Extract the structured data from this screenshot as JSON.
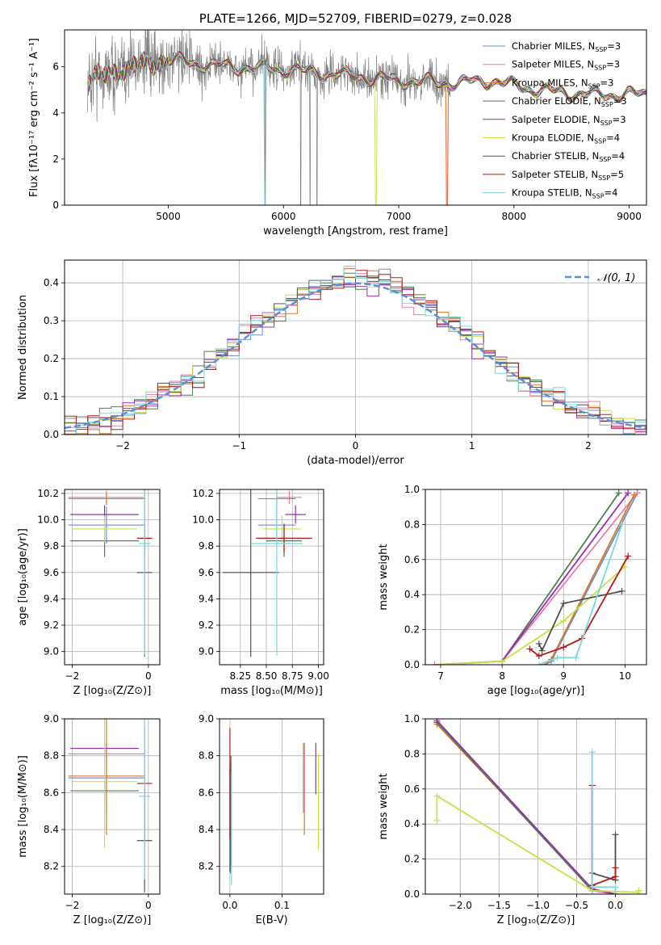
{
  "figure_title": "PLATE=1266, MJD=52709, FIBERID=0279, z=0.028",
  "colors": {
    "Chabrier MILES": "#6b8fd6",
    "Salpeter MILES": "#e67fb0",
    "Kroupa MILES": "#d97a2b",
    "Chabrier ELODIE": "#4f7f4f",
    "Salpeter ELODIE": "#9b2fb0",
    "Kroupa ELODIE": "#c8e04a",
    "Chabrier STELIB": "#505050",
    "Salpeter STELIB": "#b01c1c",
    "Kroupa STELIB": "#7ad8dc",
    "data": "#808080",
    "normal": "#5b8cd9",
    "grid": "#b0b0b0"
  },
  "chart_data": [
    {
      "id": "spectrum",
      "type": "line",
      "title": "PLATE=1266, MJD=52709, FIBERID=0279, z=0.028",
      "xlabel": "wavelength [Angstrom, rest frame]",
      "ylabel": "Flux [fλ10⁻¹⁷ erg cm⁻² s⁻¹ A⁻¹]",
      "xlim": [
        4100,
        9150
      ],
      "ylim": [
        0,
        7.6
      ],
      "xticks": [
        5000,
        6000,
        7000,
        8000,
        9000
      ],
      "yticks": [
        0,
        2,
        4,
        6
      ],
      "grid": false,
      "legend_position": "top-right",
      "legend": [
        {
          "label": "Chabrier MILES, N",
          "sub": "SSP",
          "tail": "=3",
          "model": "Chabrier MILES"
        },
        {
          "label": "Salpeter MILES, N",
          "sub": "SSP",
          "tail": "=3",
          "model": "Salpeter MILES"
        },
        {
          "label": "Kroupa MILES, N",
          "sub": "SSP",
          "tail": "=3",
          "model": "Kroupa MILES"
        },
        {
          "label": "Chabrier ELODIE, N",
          "sub": "SSP",
          "tail": "=3",
          "model": "Chabrier ELODIE"
        },
        {
          "label": "Salpeter ELODIE, N",
          "sub": "SSP",
          "tail": "=3",
          "model": "Salpeter ELODIE"
        },
        {
          "label": "Kroupa ELODIE, N",
          "sub": "SSP",
          "tail": "=4",
          "model": "Kroupa ELODIE"
        },
        {
          "label": "Chabrier STELIB, N",
          "sub": "SSP",
          "tail": "=4",
          "model": "Chabrier STELIB"
        },
        {
          "label": "Salpeter STELIB, N",
          "sub": "SSP",
          "tail": "=5",
          "model": "Salpeter STELIB"
        },
        {
          "label": "Kroupa STELIB, N",
          "sub": "SSP",
          "tail": "=4",
          "model": "Kroupa STELIB"
        }
      ],
      "continuum": [
        [
          4300,
          5.3
        ],
        [
          4500,
          5.8
        ],
        [
          4800,
          6.1
        ],
        [
          5000,
          6.3
        ],
        [
          5500,
          6.0
        ],
        [
          6000,
          5.9
        ],
        [
          6500,
          5.65
        ],
        [
          7000,
          5.4
        ],
        [
          7500,
          5.3
        ],
        [
          7800,
          5.4
        ],
        [
          8200,
          5.0
        ],
        [
          8600,
          4.8
        ],
        [
          9000,
          4.8
        ],
        [
          9150,
          4.8
        ]
      ],
      "model_cutoffs": {
        "Kroupa MILES": 7420,
        "Kroupa ELODIE": 6800,
        "Kroupa STELIB": 5840,
        "Salpeter MILES": 7420
      },
      "data_dropouts": [
        6150,
        6230,
        6290,
        5840
      ],
      "data_noisy_until": 7450
    },
    {
      "id": "residuals",
      "type": "histogram",
      "xlabel": "(data-model)/error",
      "ylabel": "Normed distribution",
      "xlim": [
        -2.5,
        2.5
      ],
      "ylim": [
        0,
        0.46
      ],
      "xticks": [
        -2,
        -1,
        0,
        1,
        2
      ],
      "yticks": [
        0.0,
        0.1,
        0.2,
        0.3,
        0.4
      ],
      "grid": true,
      "bin_width": 0.1,
      "legend_position": "top-right",
      "normal_label": "𝒩(0, 1)",
      "series_models": [
        "Chabrier MILES",
        "Salpeter MILES",
        "Kroupa MILES",
        "Chabrier ELODIE",
        "Salpeter ELODIE",
        "Kroupa ELODIE",
        "Chabrier STELIB",
        "Salpeter STELIB",
        "Kroupa STELIB"
      ]
    },
    {
      "id": "age_vs_z",
      "type": "scatter",
      "xlabel": "Z [log₁₀(Z/Z⊙)]",
      "ylabel": "age  [log₁₀(age/yr)]",
      "xlim": [
        -2.2,
        0.3
      ],
      "ylim": [
        8.9,
        10.23
      ],
      "xticks": [
        -2,
        0
      ],
      "yticks": [
        9.0,
        9.2,
        9.4,
        9.6,
        9.8,
        10.0,
        10.2
      ],
      "grid": true,
      "points": [
        {
          "model": "Chabrier MILES",
          "x": -1.1,
          "xerr": 1.0,
          "y": 9.96,
          "yerr": 0.14
        },
        {
          "model": "Salpeter MILES",
          "x": -1.1,
          "xerr": 1.0,
          "y": 10.17,
          "yerr": 0.05
        },
        {
          "model": "Kroupa MILES",
          "x": -1.1,
          "xerr": 1.0,
          "y": 10.16,
          "yerr": 0.05
        },
        {
          "model": "Chabrier ELODIE",
          "x": -1.15,
          "xerr": 0.9,
          "y": 9.84,
          "yerr": 0.12
        },
        {
          "model": "Salpeter ELODIE",
          "x": -1.15,
          "xerr": 0.9,
          "y": 10.04,
          "yerr": 0.07
        },
        {
          "model": "Kroupa ELODIE",
          "x": -1.15,
          "xerr": 0.85,
          "y": 9.93,
          "yerr": 0.1
        },
        {
          "model": "Chabrier STELIB",
          "x": -0.1,
          "xerr": 0.2,
          "y": 9.6,
          "yerr": 0.64
        },
        {
          "model": "Salpeter STELIB",
          "x": -0.1,
          "xerr": 0.2,
          "y": 9.86,
          "yerr": 0.11
        },
        {
          "model": "Kroupa STELIB",
          "x": -0.1,
          "xerr": 0.15,
          "y": 9.82,
          "yerr": 0.85
        }
      ]
    },
    {
      "id": "age_vs_mass",
      "type": "scatter",
      "xlabel": "mass [log₁₀(M/M⊙)]",
      "ylabel": "",
      "xlim": [
        8.05,
        9.05
      ],
      "ylim": [
        8.9,
        10.23
      ],
      "xticks": [
        8.25,
        8.5,
        8.75,
        9.0
      ],
      "xticklabels": [
        "8.25",
        "8.50",
        "8.75",
        "9.00"
      ],
      "yticks": [
        9.0,
        9.2,
        9.4,
        9.6,
        9.8,
        10.0,
        10.2
      ],
      "grid": true,
      "points": [
        {
          "model": "Chabrier MILES",
          "x": 8.6,
          "xerr": 0.18,
          "y": 9.96,
          "yerr": 0.14
        },
        {
          "model": "Salpeter MILES",
          "x": 8.72,
          "xerr": 0.12,
          "y": 10.17,
          "yerr": 0.05
        },
        {
          "model": "Kroupa MILES",
          "x": 8.6,
          "xerr": 0.18,
          "y": 10.16,
          "yerr": 0.05
        },
        {
          "model": "Chabrier ELODIE",
          "x": 8.67,
          "xerr": 0.17,
          "y": 9.84,
          "yerr": 0.12
        },
        {
          "model": "Salpeter ELODIE",
          "x": 8.78,
          "xerr": 0.1,
          "y": 10.04,
          "yerr": 0.07
        },
        {
          "model": "Kroupa ELODIE",
          "x": 8.65,
          "xerr": 0.18,
          "y": 9.93,
          "yerr": 0.1
        },
        {
          "model": "Chabrier STELIB",
          "x": 8.35,
          "xerr": 0.27,
          "y": 9.6,
          "yerr": 0.64
        },
        {
          "model": "Salpeter STELIB",
          "x": 8.67,
          "xerr": 0.27,
          "y": 9.86,
          "yerr": 0.11
        },
        {
          "model": "Kroupa STELIB",
          "x": 8.6,
          "xerr": 0.25,
          "y": 9.82,
          "yerr": 0.85
        }
      ]
    },
    {
      "id": "weight_vs_age",
      "type": "line",
      "xlabel": "age  [log₁₀(age/yr)]",
      "ylabel": "mass weight",
      "xlim": [
        6.75,
        10.35
      ],
      "ylim": [
        0,
        1.0
      ],
      "xticks": [
        7,
        8,
        9,
        10
      ],
      "yticks": [
        0.0,
        0.2,
        0.4,
        0.6,
        0.8,
        1.0
      ],
      "grid": true,
      "series": [
        {
          "model": "Chabrier MILES",
          "x": [
            8.7,
            8.8,
            10.2
          ],
          "y": [
            0.0,
            0.02,
            0.98
          ]
        },
        {
          "model": "Salpeter MILES",
          "x": [
            6.9,
            8.0,
            10.2
          ],
          "y": [
            0.0,
            0.02,
            0.98
          ]
        },
        {
          "model": "Kroupa MILES",
          "x": [
            8.7,
            8.8,
            10.15
          ],
          "y": [
            0.0,
            0.03,
            0.97
          ]
        },
        {
          "model": "Chabrier ELODIE",
          "x": [
            8.0,
            9.9
          ],
          "y": [
            0.02,
            0.98
          ]
        },
        {
          "model": "Salpeter ELODIE",
          "x": [
            7.0,
            8.0,
            10.05
          ],
          "y": [
            0.0,
            0.02,
            0.98
          ]
        },
        {
          "model": "Kroupa ELODIE",
          "x": [
            7.0,
            8.0,
            9.0,
            10.0
          ],
          "y": [
            0.0,
            0.02,
            0.25,
            0.56
          ]
        },
        {
          "model": "Chabrier STELIB",
          "x": [
            8.6,
            8.65,
            9.0,
            9.95
          ],
          "y": [
            0.12,
            0.08,
            0.35,
            0.42
          ]
        },
        {
          "model": "Salpeter STELIB",
          "x": [
            8.45,
            8.6,
            9.0,
            9.3,
            10.05
          ],
          "y": [
            0.09,
            0.05,
            0.1,
            0.15,
            0.62
          ]
        },
        {
          "model": "Kroupa STELIB",
          "x": [
            8.6,
            8.9,
            9.2,
            9.95
          ],
          "y": [
            0.0,
            0.04,
            0.04,
            0.8
          ]
        }
      ]
    },
    {
      "id": "mass_vs_z",
      "type": "scatter",
      "xlabel": "Z [log₁₀(Z/Z⊙)]",
      "ylabel": "mass [log₁₀(M/M⊙)]",
      "xlim": [
        -2.2,
        0.3
      ],
      "ylim": [
        8.05,
        9.0
      ],
      "xticks": [
        -2,
        0
      ],
      "yticks": [
        8.2,
        8.4,
        8.6,
        8.8,
        9.0
      ],
      "grid": true,
      "points": [
        {
          "model": "Chabrier MILES",
          "x": -1.1,
          "xerr": 1.0,
          "y": 8.68,
          "yerr": 0.19
        },
        {
          "model": "Salpeter MILES",
          "x": -1.1,
          "xerr": 1.0,
          "y": 8.81,
          "yerr": 0.06
        },
        {
          "model": "Kroupa MILES",
          "x": -1.1,
          "xerr": 1.0,
          "y": 8.69,
          "yerr": 0.32
        },
        {
          "model": "Chabrier ELODIE",
          "x": -1.15,
          "xerr": 0.9,
          "y": 8.61,
          "yerr": 0.05
        },
        {
          "model": "Salpeter ELODIE",
          "x": -1.15,
          "xerr": 0.9,
          "y": 8.84,
          "yerr": 0.03
        },
        {
          "model": "Kroupa ELODIE",
          "x": -1.15,
          "xerr": 0.85,
          "y": 8.66,
          "yerr": 0.36
        },
        {
          "model": "Chabrier STELIB",
          "x": -0.1,
          "xerr": 0.2,
          "y": 8.34,
          "yerr": 0.28
        },
        {
          "model": "Salpeter STELIB",
          "x": -0.1,
          "xerr": 0.2,
          "y": 8.65,
          "yerr": 0.3
        },
        {
          "model": "Kroupa STELIB",
          "x": -0.1,
          "xerr": 0.15,
          "y": 8.58,
          "yerr": 0.45
        }
      ]
    },
    {
      "id": "mass_vs_ebv",
      "type": "scatter",
      "xlabel": "E(B-V)",
      "ylabel": "",
      "xlim": [
        -0.02,
        0.18
      ],
      "ylim": [
        8.05,
        9.0
      ],
      "xticks": [
        0.0,
        0.1
      ],
      "xticklabels": [
        "0.0",
        "0.1"
      ],
      "yticks": [
        8.2,
        8.4,
        8.6,
        8.8,
        9.0
      ],
      "grid": true,
      "points": [
        {
          "model": "Chabrier MILES",
          "x": 0.001,
          "xerr": 0,
          "y": 8.46,
          "yerr": 0.3
        },
        {
          "model": "Salpeter MILES",
          "x": 0.141,
          "xerr": 0,
          "y": 8.68,
          "yerr": 0.19
        },
        {
          "model": "Kroupa MILES",
          "x": 0.143,
          "xerr": 0,
          "y": 8.62,
          "yerr": 0.25
        },
        {
          "model": "Chabrier ELODIE",
          "x": 0.002,
          "xerr": 0,
          "y": 8.5,
          "yerr": 0.3
        },
        {
          "model": "Salpeter ELODIE",
          "x": 0.165,
          "xerr": 0,
          "y": 8.73,
          "yerr": 0.14
        },
        {
          "model": "Kroupa ELODIE",
          "x": 0.17,
          "xerr": 0,
          "y": 8.55,
          "yerr": 0.26
        },
        {
          "model": "Chabrier STELIB",
          "x": 0.0,
          "xerr": 0,
          "y": 8.45,
          "yerr": 0.28
        },
        {
          "model": "Salpeter STELIB",
          "x": 0.0,
          "xerr": 0,
          "y": 8.65,
          "yerr": 0.3
        },
        {
          "model": "Kroupa STELIB",
          "x": 0.003,
          "xerr": 0,
          "y": 8.4,
          "yerr": 0.3
        }
      ]
    },
    {
      "id": "weight_vs_z",
      "type": "line",
      "xlabel": "Z [log₁₀(Z/Z⊙)]",
      "ylabel": "mass weight",
      "xlim": [
        -2.45,
        0.4
      ],
      "ylim": [
        0,
        1.0
      ],
      "xticks": [
        -2.0,
        -1.5,
        -1.0,
        -0.5,
        0.0
      ],
      "xticklabels": [
        "−2.0",
        "−1.5",
        "−1.0",
        "−0.5",
        "0.0"
      ],
      "yticks": [
        0.0,
        0.2,
        0.4,
        0.6,
        0.8,
        1.0
      ],
      "grid": true,
      "series": [
        {
          "model": "Chabrier MILES",
          "x": [
            -2.3,
            -0.3,
            0.0
          ],
          "y": [
            0.98,
            0.02,
            0.0
          ]
        },
        {
          "model": "Salpeter MILES",
          "x": [
            -2.3,
            -0.3,
            0.0
          ],
          "y": [
            0.98,
            0.02,
            0.0
          ]
        },
        {
          "model": "Kroupa MILES",
          "x": [
            -2.3,
            -0.3,
            0.0
          ],
          "y": [
            0.97,
            0.03,
            0.0
          ]
        },
        {
          "model": "Chabrier ELODIE",
          "x": [
            -2.3,
            -0.3
          ],
          "y": [
            0.98,
            0.02
          ]
        },
        {
          "model": "Salpeter ELODIE",
          "x": [
            -2.3,
            -0.3,
            0.0
          ],
          "y": [
            0.99,
            0.03,
            0.0
          ]
        },
        {
          "model": "Kroupa ELODIE",
          "x": [
            -2.3,
            -2.3,
            -0.3,
            0.3,
            0.3
          ],
          "y": [
            0.42,
            0.56,
            0.02,
            0.01,
            0.02
          ]
        },
        {
          "model": "Chabrier STELIB",
          "x": [
            -0.3,
            -0.3,
            0.0,
            0.0
          ],
          "y": [
            0.62,
            0.12,
            0.08,
            0.34
          ]
        },
        {
          "model": "Salpeter STELIB",
          "x": [
            -0.3,
            -0.3,
            0.0,
            0.0
          ],
          "y": [
            0.62,
            0.05,
            0.1,
            0.15
          ]
        },
        {
          "model": "Kroupa STELIB",
          "x": [
            -0.3,
            -0.3,
            0.0,
            0.0
          ],
          "y": [
            0.81,
            0.04,
            0.04,
            0.0
          ]
        }
      ]
    }
  ]
}
